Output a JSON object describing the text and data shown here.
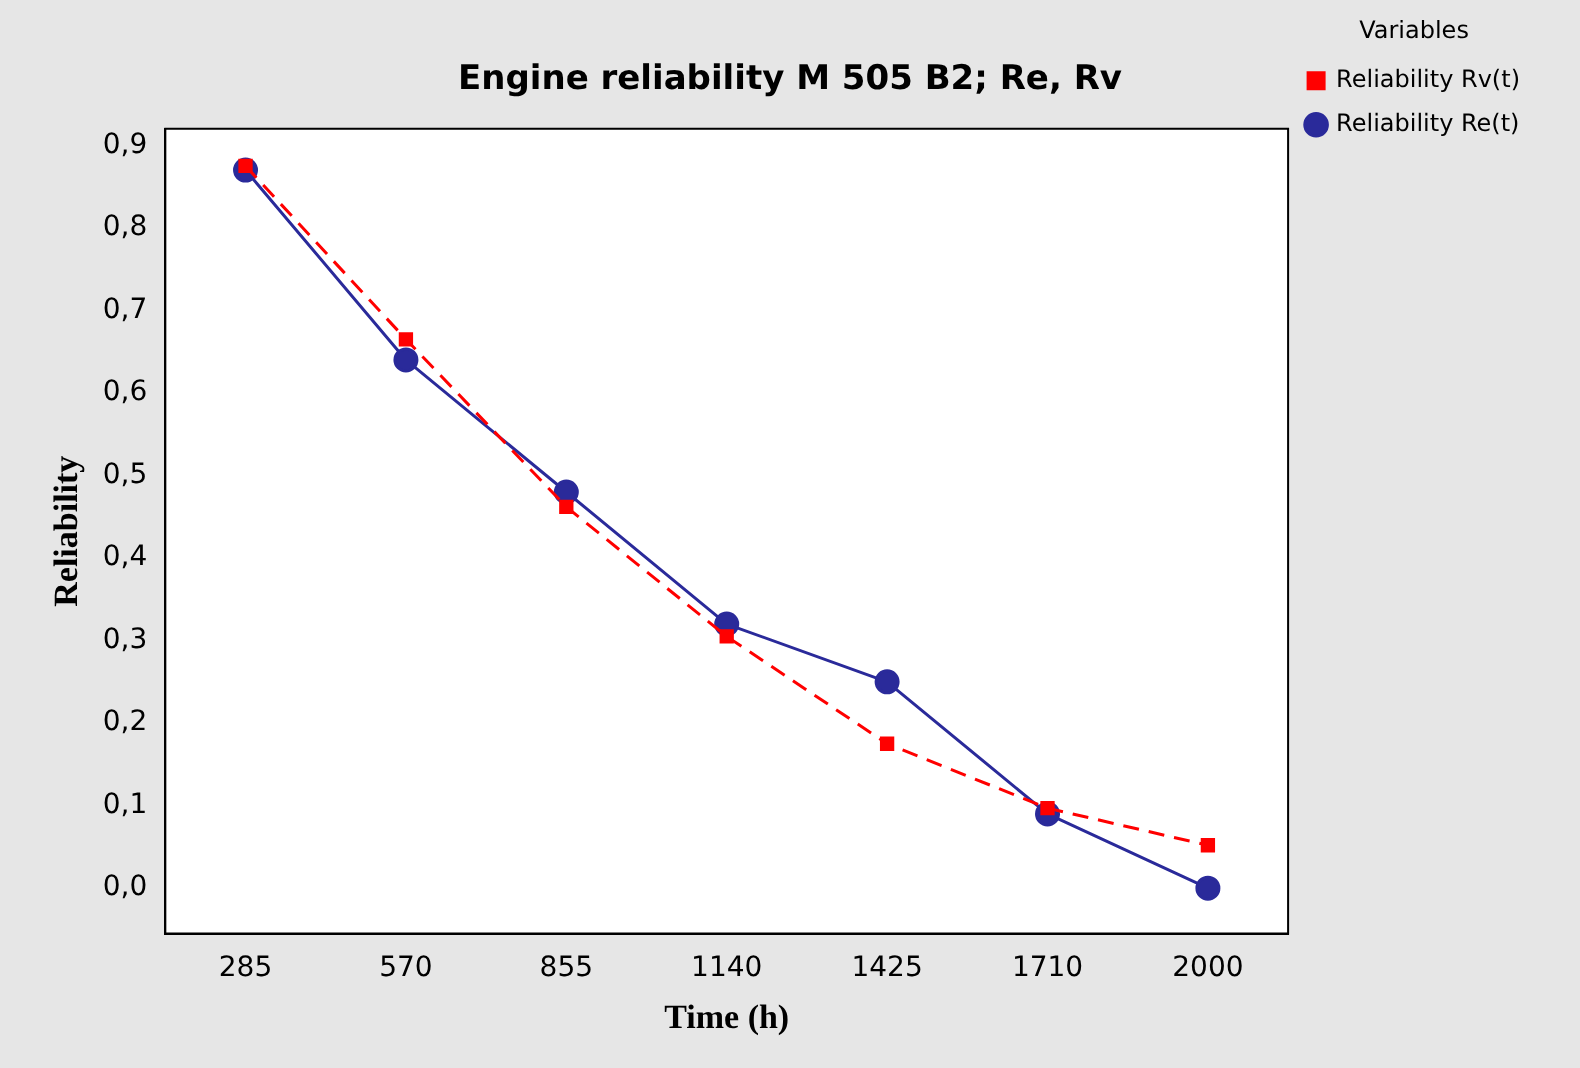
{
  "chart_data": {
    "type": "line",
    "title": "Engine reliability M 505 B2; Re, Rv",
    "xlabel": "Time (h)",
    "ylabel": "Reliability",
    "legend_title": "Variables",
    "legend": "right",
    "categories": [
      "285",
      "570",
      "855",
      "1140",
      "1425",
      "1710",
      "2000"
    ],
    "series": [
      {
        "name": "Reliability Re(t)",
        "color": "#2a2a9a",
        "marker": "circle",
        "line_style": "solid",
        "values": [
          0.87,
          0.64,
          0.48,
          0.32,
          0.25,
          0.09,
          0.0
        ]
      },
      {
        "name": "Reliability Rv(t)",
        "color": "#ff0000",
        "marker": "square",
        "line_style": "dashed",
        "values": [
          0.875,
          0.665,
          0.462,
          0.305,
          0.175,
          0.097,
          0.052
        ]
      }
    ],
    "ylim": [
      -0.055,
      0.92
    ],
    "yticks": [
      {
        "value": 0,
        "label": "0,0"
      },
      {
        "value": 0.1,
        "label": "0,1"
      },
      {
        "value": 0.2,
        "label": "0,2"
      },
      {
        "value": 0.3,
        "label": "0,3"
      },
      {
        "value": 0.4,
        "label": "0,4"
      },
      {
        "value": 0.5,
        "label": "0,5"
      },
      {
        "value": 0.6,
        "label": "0,6"
      },
      {
        "value": 0.7,
        "label": "0,7"
      },
      {
        "value": 0.8,
        "label": "0,8"
      },
      {
        "value": 0.9,
        "label": "0,9"
      }
    ],
    "grid": false
  }
}
